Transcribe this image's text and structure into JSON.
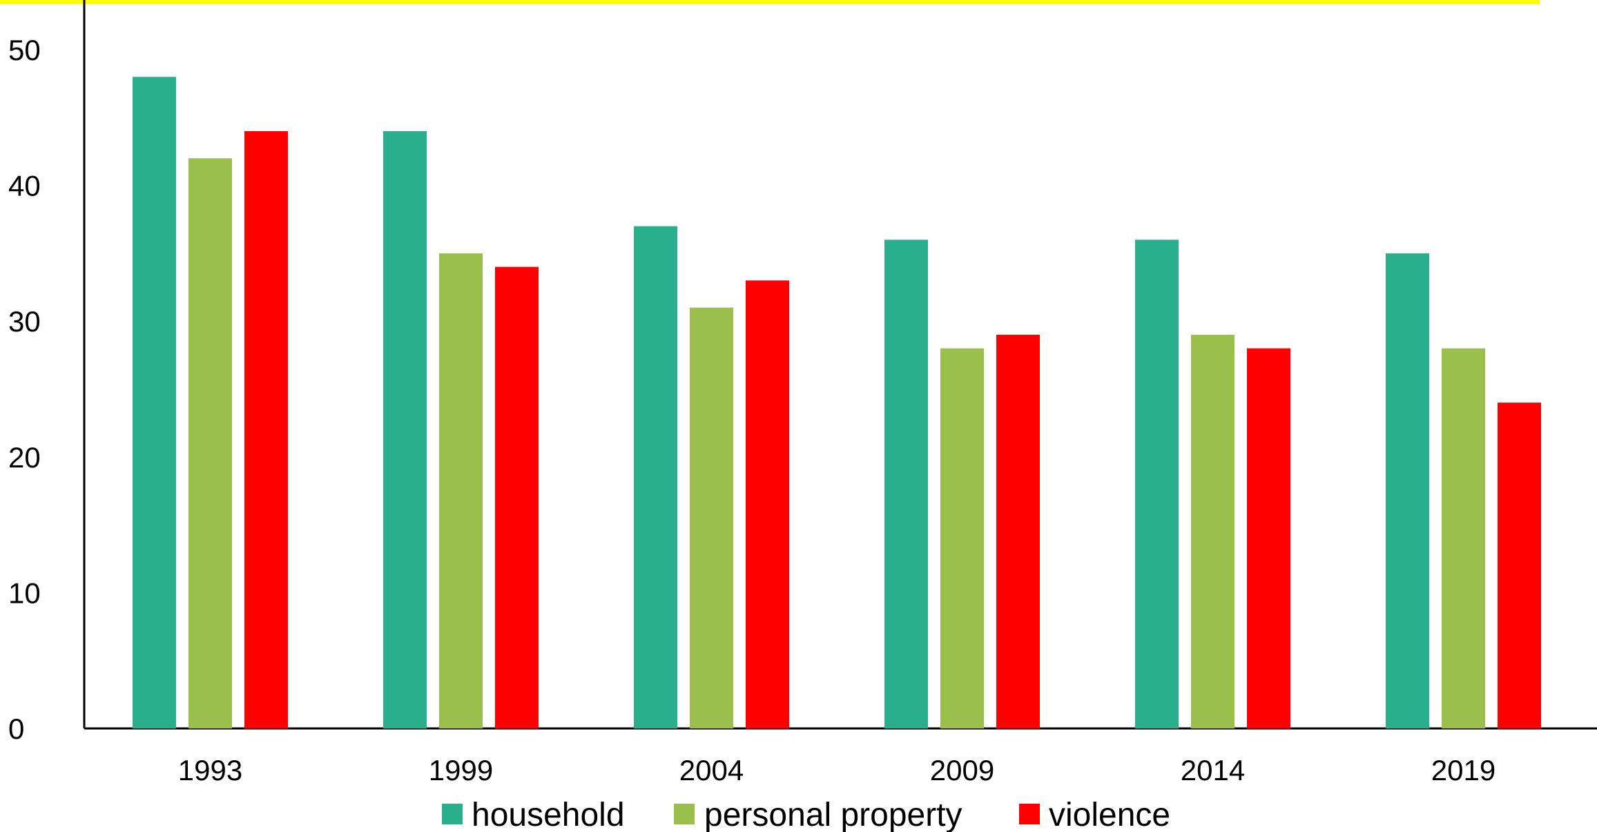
{
  "chart_data": {
    "type": "bar",
    "categories": [
      "1993",
      "1999",
      "2004",
      "2009",
      "2014",
      "2019"
    ],
    "series": [
      {
        "name": "household",
        "color": "#2aaf8c",
        "values": [
          48,
          44,
          37,
          36,
          36,
          35
        ]
      },
      {
        "name": "personal property",
        "color": "#9bbf4c",
        "values": [
          42,
          35,
          31,
          28,
          29,
          28
        ]
      },
      {
        "name": "violence",
        "color": "#ff0000",
        "values": [
          44,
          34,
          33,
          29,
          28,
          24
        ]
      }
    ],
    "ylim": [
      0,
      50
    ],
    "yticks": [
      "0",
      "10",
      "20",
      "30",
      "40",
      "50"
    ],
    "legend": "bottom",
    "grid": false,
    "title": "",
    "xlabel": "",
    "ylabel": ""
  },
  "colors": {
    "top_highlight": "#ffff00",
    "axis": "#000000"
  }
}
